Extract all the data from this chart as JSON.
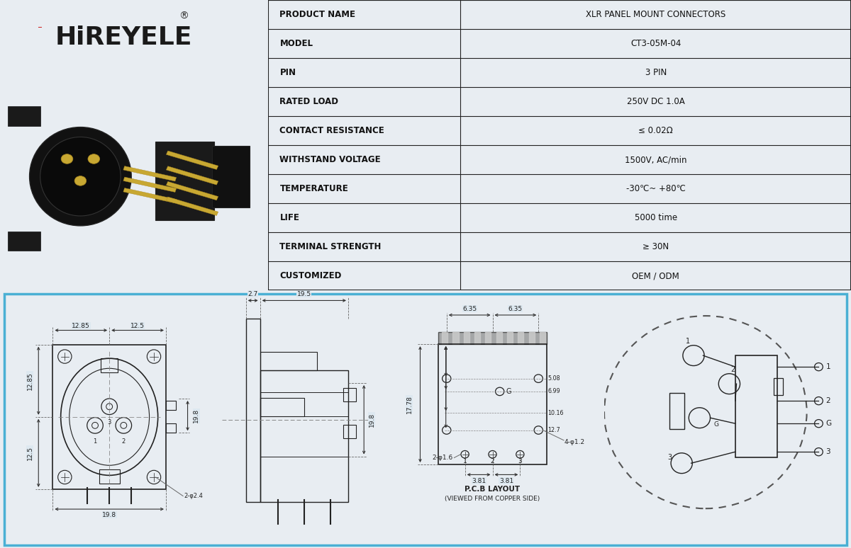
{
  "bg_color": "#e8edf2",
  "bg_color_bottom": "#dde8f0",
  "table_bg": "#ffffff",
  "border_color": "#333333",
  "blue_border": "#4ab0d4",
  "logo_text": "HiREYELE",
  "table_rows": [
    [
      "PRODUCT NAME",
      "XLR PANEL MOUNT CONNECTORS"
    ],
    [
      "MODEL",
      "CT3-05M-04"
    ],
    [
      "PIN",
      "3 PIN"
    ],
    [
      "RATED LOAD",
      "250V DC 1.0A"
    ],
    [
      "CONTACT RESISTANCE",
      "≤ 0.02Ω"
    ],
    [
      "WITHSTAND VOLTAGE",
      "1500V, AC/min"
    ],
    [
      "TEMPERATURE",
      "-30℃~ +80℃"
    ],
    [
      "LIFE",
      "5000 time"
    ],
    [
      "TERMINAL STRENGTH",
      "≥ 30N"
    ],
    [
      "CUSTOMIZED",
      "OEM / ODM"
    ]
  ],
  "photo_bg": "#d8dde4",
  "line_color": "#222222",
  "dim_color": "#333333",
  "dash_color": "#666666"
}
